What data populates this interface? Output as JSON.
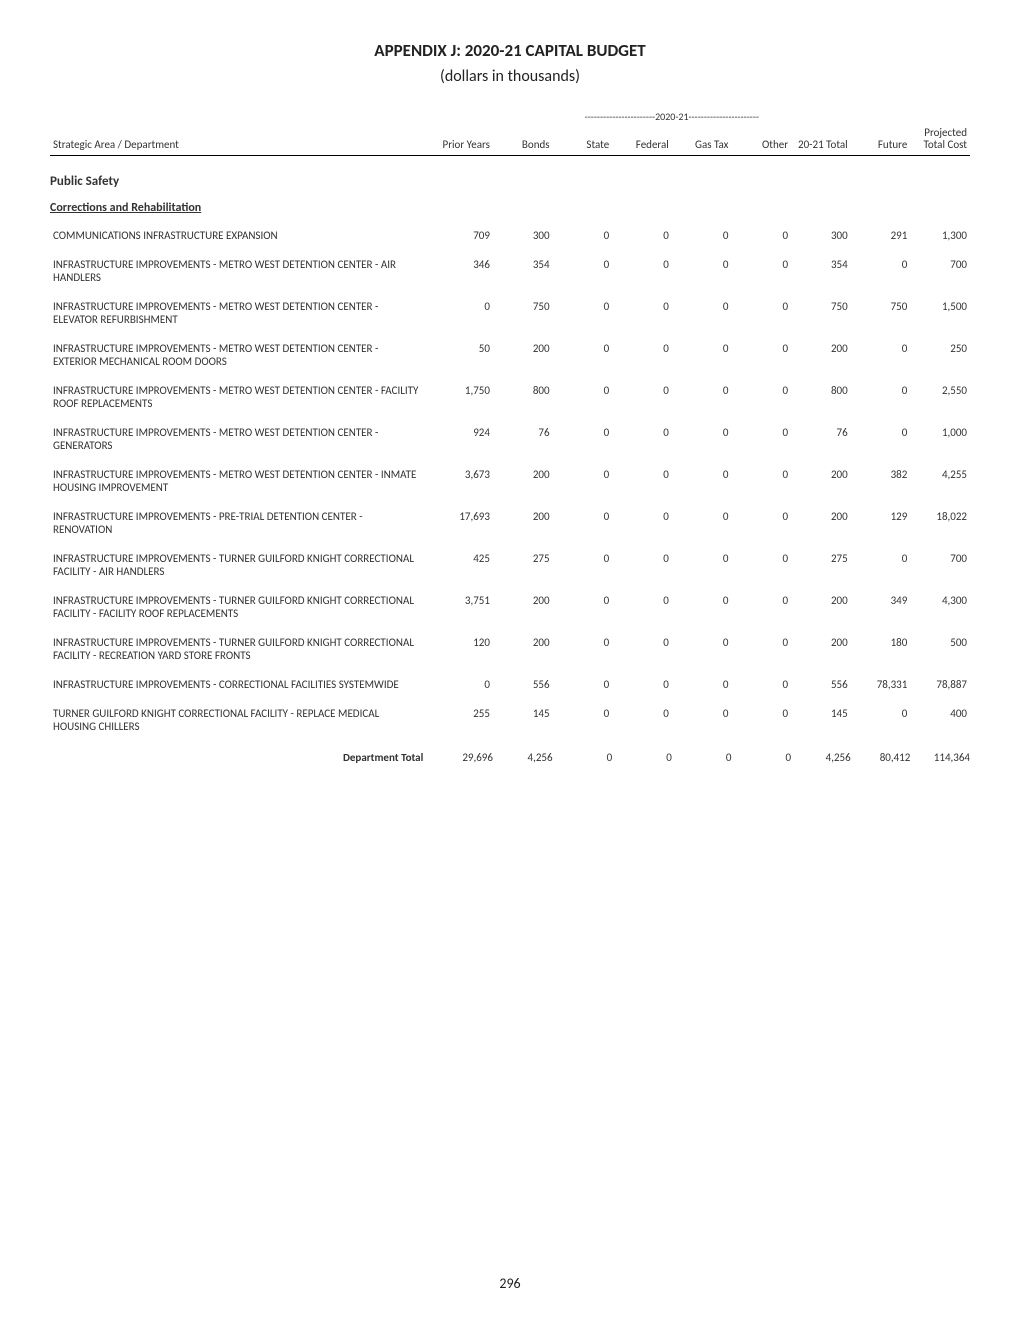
{
  "title": "APPENDIX J:   2020-21 CAPITAL BUDGET",
  "subtitle": "(dollars in thousands)",
  "banner": {
    "left_dash": "-----------------------",
    "label": "2020-21",
    "right_dash": "-----------------------"
  },
  "columns": [
    "Strategic Area / Department",
    "Prior Years",
    "Bonds",
    "State",
    "Federal",
    "Gas Tax",
    "Other",
    "20-21 Total",
    "Future",
    "Projected Total Cost"
  ],
  "section": "Public Safety",
  "subsection": "Corrections and Rehabilitation",
  "rows": [
    {
      "desc": "COMMUNICATIONS INFRASTRUCTURE EXPANSION",
      "vals": [
        "709",
        "300",
        "0",
        "0",
        "0",
        "0",
        "300",
        "291",
        "1,300"
      ]
    },
    {
      "desc": "INFRASTRUCTURE IMPROVEMENTS - METRO WEST DETENTION CENTER - AIR HANDLERS",
      "vals": [
        "346",
        "354",
        "0",
        "0",
        "0",
        "0",
        "354",
        "0",
        "700"
      ]
    },
    {
      "desc": "INFRASTRUCTURE IMPROVEMENTS - METRO WEST DETENTION CENTER - ELEVATOR REFURBISHMENT",
      "vals": [
        "0",
        "750",
        "0",
        "0",
        "0",
        "0",
        "750",
        "750",
        "1,500"
      ]
    },
    {
      "desc": "INFRASTRUCTURE IMPROVEMENTS - METRO WEST DETENTION CENTER - EXTERIOR MECHANICAL ROOM DOORS",
      "vals": [
        "50",
        "200",
        "0",
        "0",
        "0",
        "0",
        "200",
        "0",
        "250"
      ]
    },
    {
      "desc": "INFRASTRUCTURE IMPROVEMENTS - METRO WEST DETENTION CENTER - FACILITY ROOF REPLACEMENTS",
      "vals": [
        "1,750",
        "800",
        "0",
        "0",
        "0",
        "0",
        "800",
        "0",
        "2,550"
      ]
    },
    {
      "desc": "INFRASTRUCTURE IMPROVEMENTS - METRO WEST DETENTION CENTER - GENERATORS",
      "vals": [
        "924",
        "76",
        "0",
        "0",
        "0",
        "0",
        "76",
        "0",
        "1,000"
      ]
    },
    {
      "desc": "INFRASTRUCTURE IMPROVEMENTS - METRO WEST DETENTION CENTER - INMATE HOUSING IMPROVEMENT",
      "vals": [
        "3,673",
        "200",
        "0",
        "0",
        "0",
        "0",
        "200",
        "382",
        "4,255"
      ]
    },
    {
      "desc": "INFRASTRUCTURE IMPROVEMENTS - PRE-TRIAL DETENTION CENTER - RENOVATION",
      "vals": [
        "17,693",
        "200",
        "0",
        "0",
        "0",
        "0",
        "200",
        "129",
        "18,022"
      ]
    },
    {
      "desc": "INFRASTRUCTURE IMPROVEMENTS - TURNER GUILFORD KNIGHT CORRECTIONAL FACILITY - AIR HANDLERS",
      "vals": [
        "425",
        "275",
        "0",
        "0",
        "0",
        "0",
        "275",
        "0",
        "700"
      ]
    },
    {
      "desc": "INFRASTRUCTURE IMPROVEMENTS - TURNER GUILFORD KNIGHT CORRECTIONAL FACILITY - FACILITY ROOF REPLACEMENTS",
      "vals": [
        "3,751",
        "200",
        "0",
        "0",
        "0",
        "0",
        "200",
        "349",
        "4,300"
      ]
    },
    {
      "desc": "INFRASTRUCTURE IMPROVEMENTS - TURNER GUILFORD KNIGHT CORRECTIONAL FACILITY - RECREATION YARD STORE FRONTS",
      "vals": [
        "120",
        "200",
        "0",
        "0",
        "0",
        "0",
        "200",
        "180",
        "500"
      ]
    },
    {
      "desc": "INFRASTRUCTURE IMPROVEMENTS - CORRECTIONAL FACILITIES SYSTEMWIDE",
      "vals": [
        "0",
        "556",
        "0",
        "0",
        "0",
        "0",
        "556",
        "78,331",
        "78,887"
      ]
    },
    {
      "desc": "TURNER GUILFORD KNIGHT CORRECTIONAL FACILITY - REPLACE MEDICAL HOUSING CHILLERS",
      "vals": [
        "255",
        "145",
        "0",
        "0",
        "0",
        "0",
        "145",
        "0",
        "400"
      ]
    }
  ],
  "total": {
    "label": "Department Total",
    "vals": [
      "29,696",
      "4,256",
      "0",
      "0",
      "0",
      "0",
      "4,256",
      "80,412",
      "114,364"
    ]
  },
  "page_number": "296"
}
